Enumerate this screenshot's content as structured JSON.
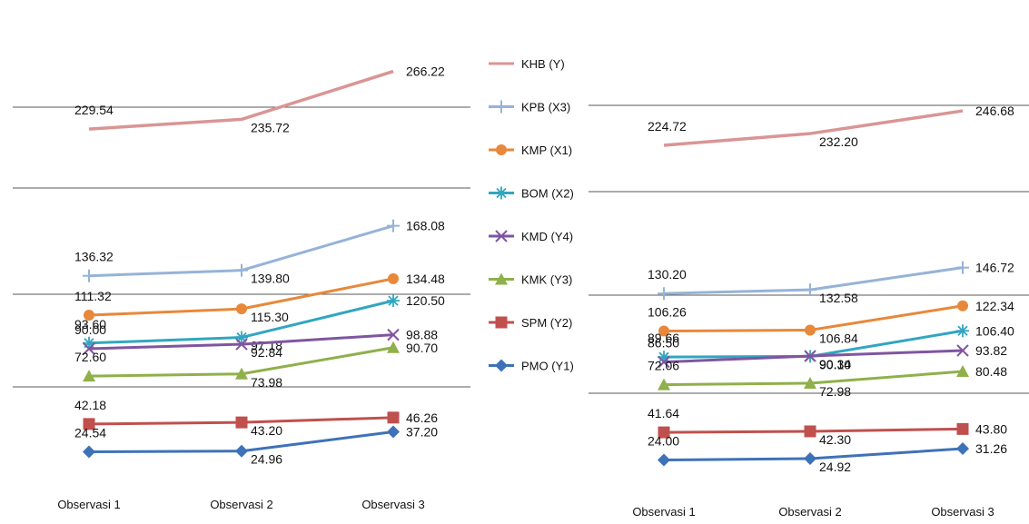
{
  "chart_data": [
    {
      "type": "line",
      "categories": [
        "Observasi 1",
        "Observasi 2",
        "Observasi 3"
      ],
      "ylim": [
        0,
        300
      ],
      "grid": true,
      "series": [
        {
          "name": "KHB (Y)",
          "values": [
            229.54,
            235.72,
            266.22
          ],
          "labels": [
            "229.54",
            "235.72",
            "266.22"
          ]
        },
        {
          "name": "KPB (X3)",
          "values": [
            136.32,
            139.8,
            168.08
          ],
          "labels": [
            "136.32",
            "139.80",
            "168.08"
          ]
        },
        {
          "name": "KMP (X1)",
          "values": [
            111.32,
            115.3,
            134.48
          ],
          "labels": [
            "111.32",
            "115.30",
            "134.48"
          ]
        },
        {
          "name": "BOM (X2)",
          "values": [
            93.6,
            97.18,
            120.5
          ],
          "labels": [
            "93.60",
            "97.18",
            "120.50"
          ]
        },
        {
          "name": "KMD (Y4)",
          "values": [
            90.0,
            92.84,
            98.88
          ],
          "labels": [
            "90.00",
            "92.84",
            "98.88"
          ]
        },
        {
          "name": "KMK (Y3)",
          "values": [
            72.6,
            73.98,
            90.7
          ],
          "labels": [
            "72.60",
            "73.98",
            "90.70"
          ]
        },
        {
          "name": "SPM (Y2)",
          "values": [
            42.18,
            43.2,
            46.26
          ],
          "labels": [
            "42.18",
            "43.20",
            "46.26"
          ]
        },
        {
          "name": "PMO (Y1)",
          "values": [
            24.54,
            24.96,
            37.2
          ],
          "labels": [
            "24.54",
            "24.96",
            "37.20"
          ]
        }
      ]
    },
    {
      "type": "line",
      "categories": [
        "Observasi 1",
        "Observasi 2",
        "Observasi 3"
      ],
      "ylim": [
        0,
        300
      ],
      "grid": true,
      "series": [
        {
          "name": "KHB (Y)",
          "values": [
            224.72,
            232.2,
            246.68
          ],
          "labels": [
            "224.72",
            "232.20",
            "246.68"
          ]
        },
        {
          "name": "KPB (X3)",
          "values": [
            130.2,
            132.58,
            146.72
          ],
          "labels": [
            "130.20",
            "132.58",
            "146.72"
          ]
        },
        {
          "name": "KMP (X1)",
          "values": [
            106.26,
            106.84,
            122.34
          ],
          "labels": [
            "106.26",
            "106.84",
            "122.34"
          ]
        },
        {
          "name": "BOM (X2)",
          "values": [
            89.66,
            90.1,
            106.4
          ],
          "labels": [
            "89.66",
            "90.10",
            "106.40"
          ]
        },
        {
          "name": "KMD (Y4)",
          "values": [
            86.5,
            90.34,
            93.82
          ],
          "labels": [
            "86.50",
            "90.34",
            "93.82"
          ]
        },
        {
          "name": "KMK (Y3)",
          "values": [
            72.06,
            72.98,
            80.48
          ],
          "labels": [
            "72.06",
            "72.98",
            "80.48"
          ]
        },
        {
          "name": "SPM (Y2)",
          "values": [
            41.64,
            42.3,
            43.8
          ],
          "labels": [
            "41.64",
            "42.30",
            "43.80"
          ]
        },
        {
          "name": "PMO (Y1)",
          "values": [
            24.0,
            24.92,
            31.26
          ],
          "labels": [
            "24.00",
            "24.92",
            "31.26"
          ]
        }
      ]
    }
  ],
  "legend": {
    "placement": "center",
    "items": [
      {
        "name": "KHB (Y)",
        "color": "#d99594",
        "marker": "none"
      },
      {
        "name": "KPB (X3)",
        "color": "#95b3d7",
        "marker": "plus"
      },
      {
        "name": "KMP (X1)",
        "color": "#e8883a",
        "marker": "circle"
      },
      {
        "name": "BOM (X2)",
        "color": "#31a6c0",
        "marker": "asterisk"
      },
      {
        "name": "KMD (Y4)",
        "color": "#7f55a0",
        "marker": "x"
      },
      {
        "name": "KMK (Y3)",
        "color": "#8fb04a",
        "marker": "triangle"
      },
      {
        "name": "SPM (Y2)",
        "color": "#c0504d",
        "marker": "square"
      },
      {
        "name": "PMO (Y1)",
        "color": "#3e72b8",
        "marker": "diamond"
      }
    ]
  }
}
